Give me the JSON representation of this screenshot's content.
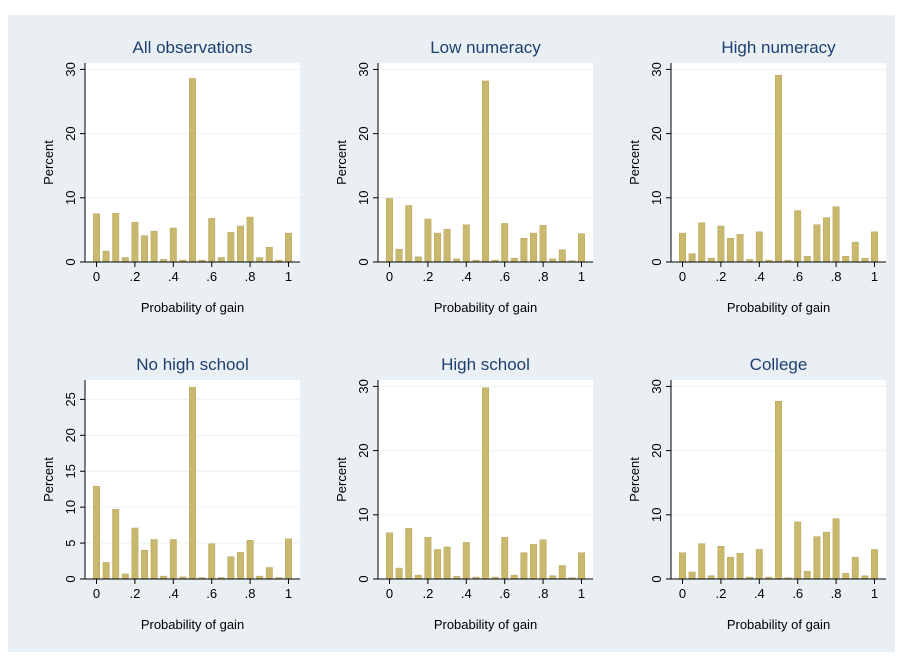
{
  "chart_data": [
    {
      "type": "bar",
      "title": "All observations",
      "xlabel": "Probability of gain",
      "ylabel": "Percent",
      "color": "#c9b96f",
      "x": [
        0,
        0.05,
        0.1,
        0.15,
        0.2,
        0.25,
        0.3,
        0.35,
        0.4,
        0.45,
        0.5,
        0.55,
        0.6,
        0.65,
        0.7,
        0.75,
        0.8,
        0.85,
        0.9,
        0.95,
        1
      ],
      "values": [
        7.5,
        1.7,
        7.6,
        0.7,
        6.2,
        4.1,
        4.8,
        0.4,
        5.3,
        0.3,
        28.6,
        0.3,
        6.8,
        0.7,
        4.6,
        5.6,
        7.0,
        0.7,
        2.3,
        0.3,
        4.5
      ],
      "xlim": [
        -0.06,
        1.06
      ],
      "xticks": [
        0,
        {
          "value": 0.2,
          "label": ".2"
        },
        {
          "value": 0.4,
          "label": ".4"
        },
        {
          "value": 0.6,
          "label": ".6"
        },
        {
          "value": 0.8,
          "label": ".8"
        },
        1
      ],
      "ylim": [
        0,
        31
      ],
      "yticks": [
        0,
        10,
        20,
        30
      ],
      "grid": true
    },
    {
      "type": "bar",
      "title": "Low numeracy",
      "xlabel": "Probability of gain",
      "ylabel": "Percent",
      "color": "#c9b96f",
      "x": [
        0,
        0.05,
        0.1,
        0.15,
        0.2,
        0.25,
        0.3,
        0.35,
        0.4,
        0.45,
        0.5,
        0.55,
        0.6,
        0.65,
        0.7,
        0.75,
        0.8,
        0.85,
        0.9,
        0.95,
        1
      ],
      "values": [
        9.9,
        2.0,
        8.8,
        0.8,
        6.7,
        4.5,
        5.1,
        0.5,
        5.8,
        0.3,
        28.2,
        0.3,
        6.0,
        0.6,
        3.7,
        4.5,
        5.7,
        0.5,
        1.9,
        0.2,
        4.4
      ],
      "xlim": [
        -0.06,
        1.06
      ],
      "xticks": [
        0,
        {
          "value": 0.2,
          "label": ".2"
        },
        {
          "value": 0.4,
          "label": ".4"
        },
        {
          "value": 0.6,
          "label": ".6"
        },
        {
          "value": 0.8,
          "label": ".8"
        },
        1
      ],
      "ylim": [
        0,
        31
      ],
      "yticks": [
        0,
        10,
        20,
        30
      ],
      "grid": true
    },
    {
      "type": "bar",
      "title": "High numeracy",
      "xlabel": "Probability of gain",
      "ylabel": "Percent",
      "color": "#c9b96f",
      "x": [
        0,
        0.05,
        0.1,
        0.15,
        0.2,
        0.25,
        0.3,
        0.35,
        0.4,
        0.45,
        0.5,
        0.55,
        0.6,
        0.65,
        0.7,
        0.75,
        0.8,
        0.85,
        0.9,
        0.95,
        1
      ],
      "values": [
        4.5,
        1.3,
        6.1,
        0.6,
        5.6,
        3.7,
        4.3,
        0.4,
        4.7,
        0.3,
        29.1,
        0.3,
        8.0,
        0.9,
        5.8,
        6.9,
        8.6,
        0.9,
        3.1,
        0.6,
        4.7
      ],
      "xlim": [
        -0.06,
        1.06
      ],
      "xticks": [
        0,
        {
          "value": 0.2,
          "label": ".2"
        },
        {
          "value": 0.4,
          "label": ".4"
        },
        {
          "value": 0.6,
          "label": ".6"
        },
        {
          "value": 0.8,
          "label": ".8"
        },
        1
      ],
      "ylim": [
        0,
        31
      ],
      "yticks": [
        0,
        10,
        20,
        30
      ],
      "grid": true
    },
    {
      "type": "bar",
      "title": "No high school",
      "xlabel": "Probability of gain",
      "ylabel": "Percent",
      "color": "#c9b96f",
      "x": [
        0,
        0.05,
        0.1,
        0.15,
        0.2,
        0.25,
        0.3,
        0.35,
        0.4,
        0.45,
        0.5,
        0.55,
        0.6,
        0.65,
        0.7,
        0.75,
        0.8,
        0.85,
        0.9,
        0.95,
        1
      ],
      "values": [
        12.9,
        2.3,
        9.7,
        0.7,
        7.1,
        4.0,
        5.5,
        0.4,
        5.5,
        0.3,
        26.7,
        0.2,
        4.9,
        0.2,
        3.1,
        3.7,
        5.4,
        0.4,
        1.6,
        0.2,
        5.6
      ],
      "xlim": [
        -0.06,
        1.06
      ],
      "xticks": [
        0,
        {
          "value": 0.2,
          "label": ".2"
        },
        {
          "value": 0.4,
          "label": ".4"
        },
        {
          "value": 0.6,
          "label": ".6"
        },
        {
          "value": 0.8,
          "label": ".8"
        },
        1
      ],
      "ylim": [
        0,
        27.7
      ],
      "yticks": [
        0,
        5,
        10,
        15,
        20,
        25
      ],
      "grid": true
    },
    {
      "type": "bar",
      "title": "High school",
      "xlabel": "Probability of gain",
      "ylabel": "Percent",
      "color": "#c9b96f",
      "x": [
        0,
        0.05,
        0.1,
        0.15,
        0.2,
        0.25,
        0.3,
        0.35,
        0.4,
        0.45,
        0.5,
        0.55,
        0.6,
        0.65,
        0.7,
        0.75,
        0.8,
        0.85,
        0.9,
        0.95,
        1
      ],
      "values": [
        7.2,
        1.7,
        7.9,
        0.6,
        6.5,
        4.6,
        5.0,
        0.4,
        5.7,
        0.3,
        29.8,
        0.3,
        6.5,
        0.6,
        4.1,
        5.4,
        6.1,
        0.5,
        2.1,
        0.2,
        4.1
      ],
      "xlim": [
        -0.06,
        1.06
      ],
      "xticks": [
        0,
        {
          "value": 0.2,
          "label": ".2"
        },
        {
          "value": 0.4,
          "label": ".4"
        },
        {
          "value": 0.6,
          "label": ".6"
        },
        {
          "value": 0.8,
          "label": ".8"
        },
        1
      ],
      "ylim": [
        0,
        31
      ],
      "yticks": [
        0,
        10,
        20,
        30
      ],
      "grid": true
    },
    {
      "type": "bar",
      "title": "College",
      "xlabel": "Probability of gain",
      "ylabel": "Percent",
      "color": "#c9b96f",
      "x": [
        0,
        0.05,
        0.1,
        0.15,
        0.2,
        0.25,
        0.3,
        0.35,
        0.4,
        0.45,
        0.5,
        0.55,
        0.6,
        0.65,
        0.7,
        0.75,
        0.8,
        0.85,
        0.9,
        0.95,
        1
      ],
      "values": [
        4.1,
        1.1,
        5.5,
        0.5,
        5.1,
        3.4,
        4.0,
        0.3,
        4.6,
        0.3,
        27.7,
        0.2,
        8.9,
        1.2,
        6.6,
        7.3,
        9.4,
        0.9,
        3.4,
        0.5,
        4.6
      ],
      "xlim": [
        -0.06,
        1.06
      ],
      "xticks": [
        0,
        {
          "value": 0.2,
          "label": ".2"
        },
        {
          "value": 0.4,
          "label": ".4"
        },
        {
          "value": 0.6,
          "label": ".6"
        },
        {
          "value": 0.8,
          "label": ".8"
        },
        1
      ],
      "ylim": [
        0,
        31
      ],
      "yticks": [
        0,
        10,
        20,
        30
      ],
      "grid": true
    }
  ]
}
